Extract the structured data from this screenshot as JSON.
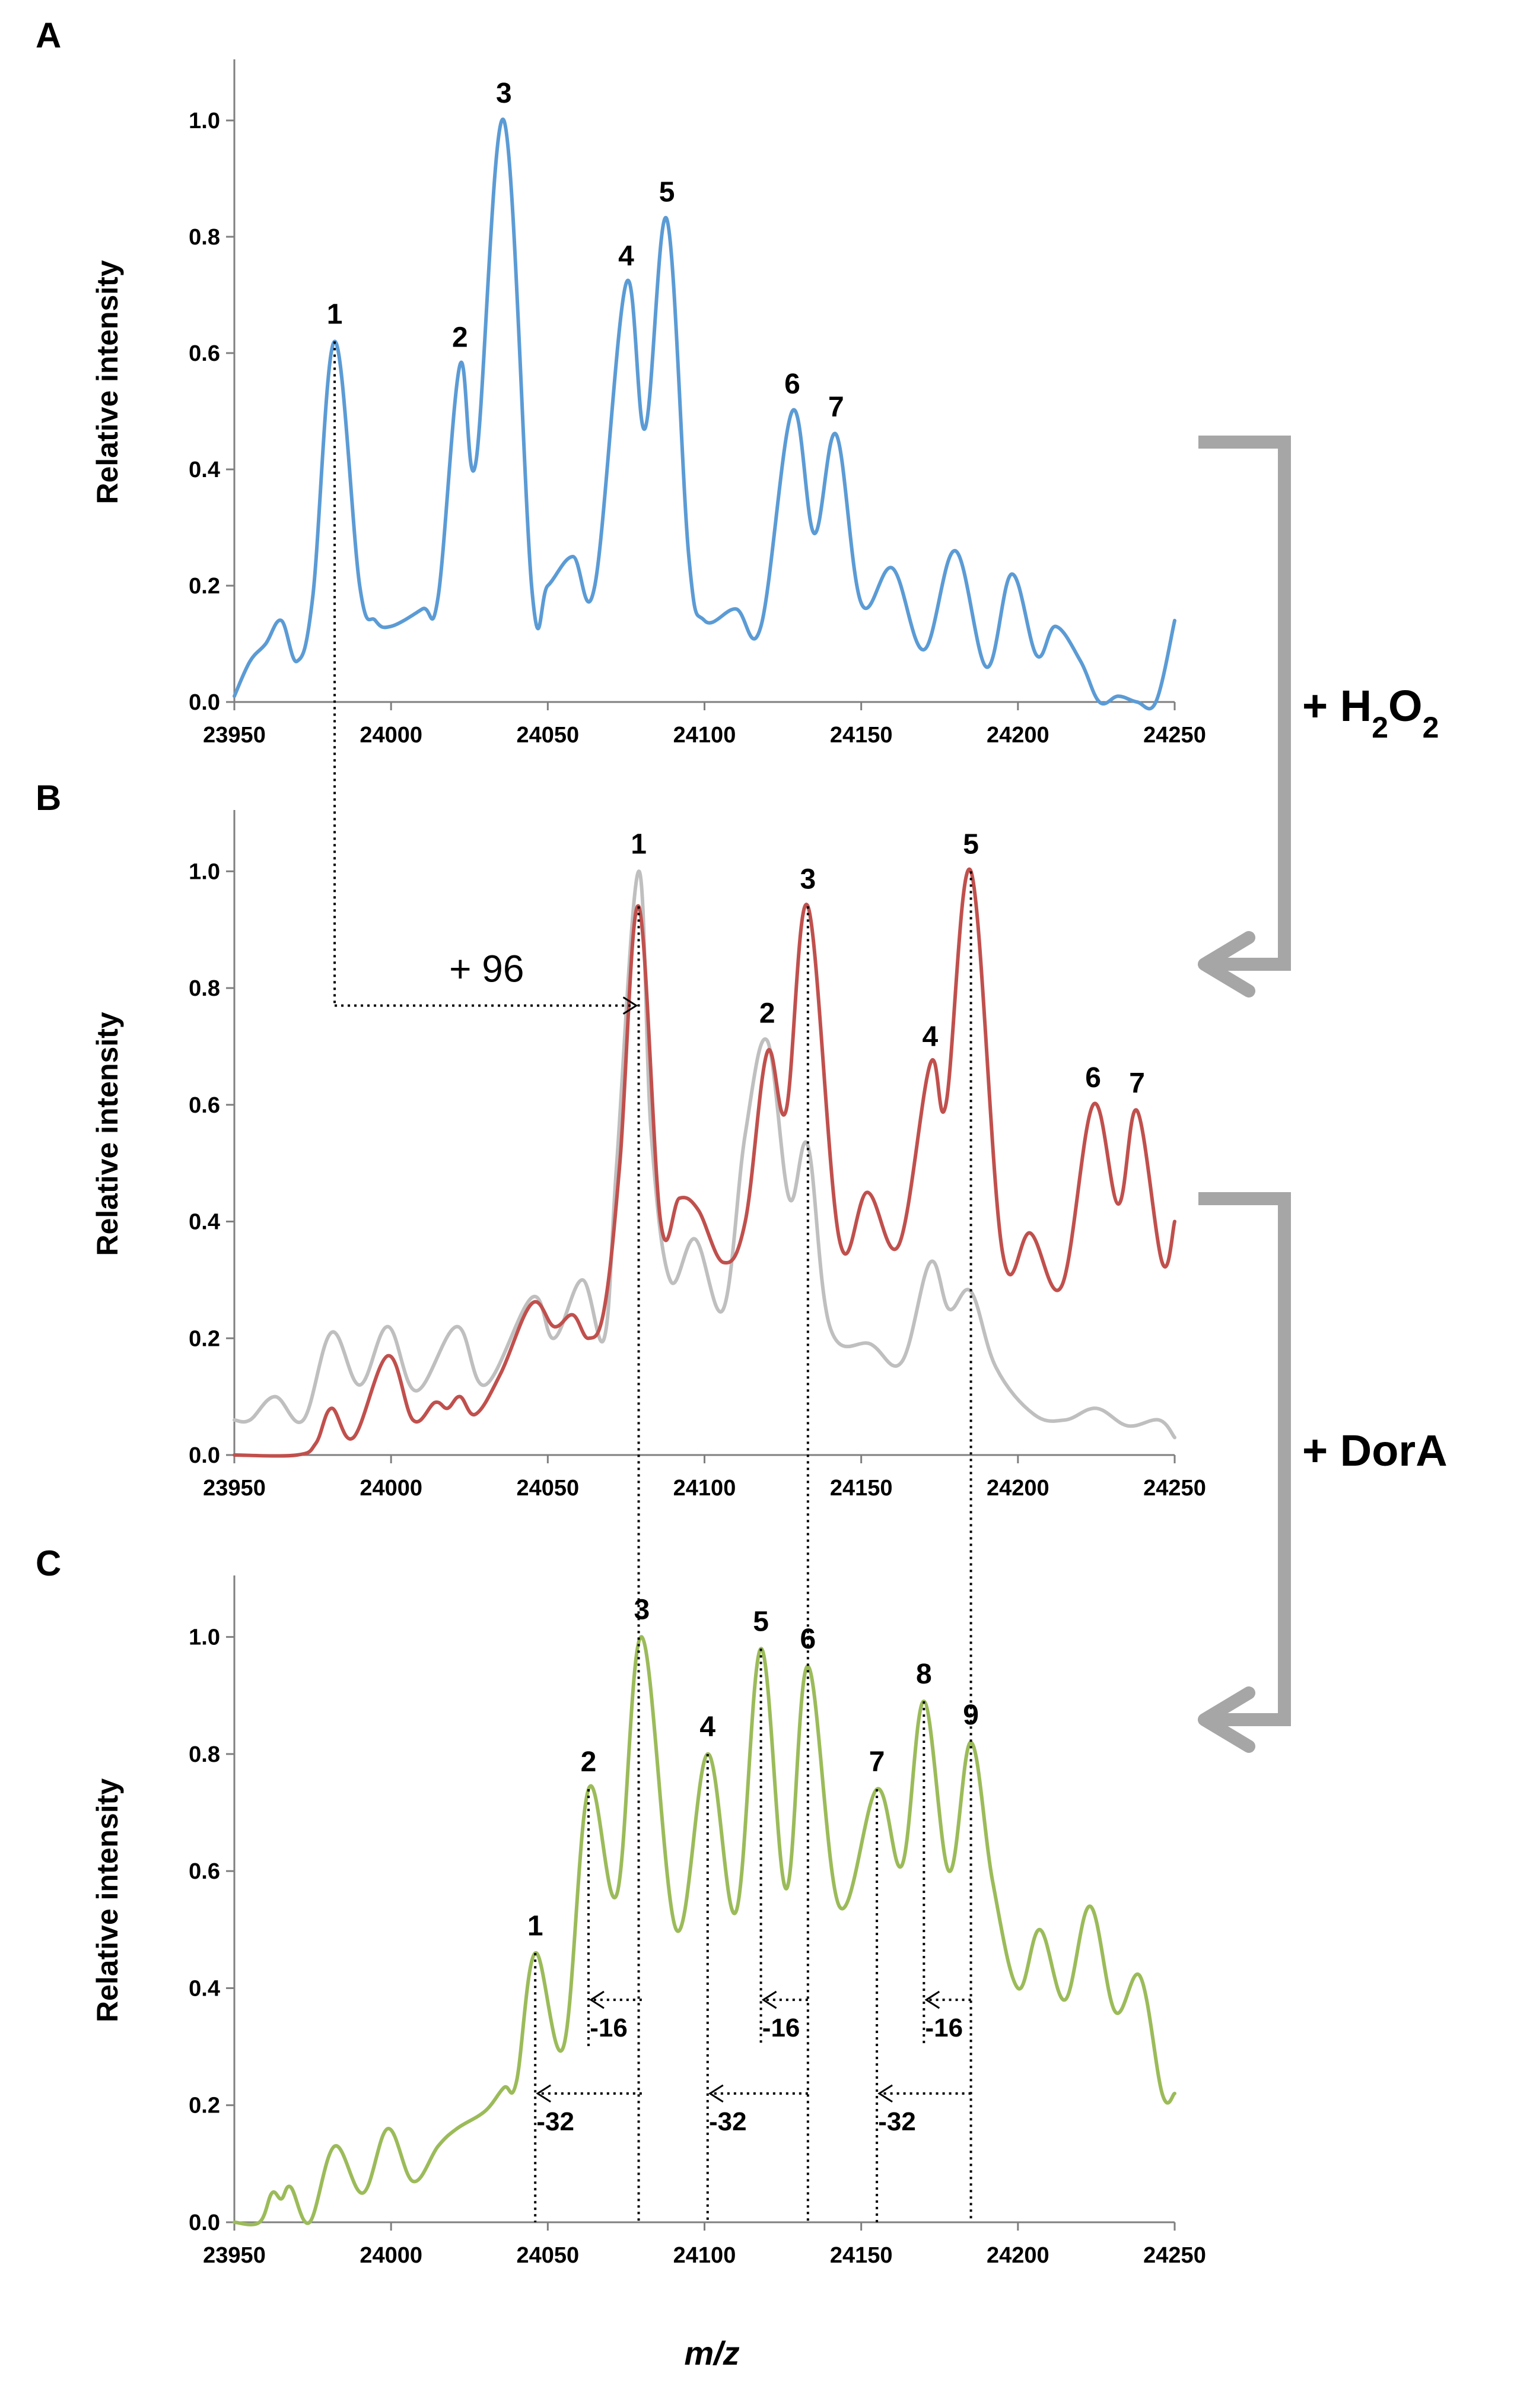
{
  "chart_data": [
    {
      "type": "line",
      "panel": "A",
      "ylabel": "Relative intensity",
      "xlim": [
        23950,
        24250
      ],
      "ylim": [
        0,
        1.1
      ],
      "xticks": [
        23950,
        24000,
        24050,
        24100,
        24150,
        24200,
        24250
      ],
      "yticks": [
        "0.0",
        "0.2",
        "0.4",
        "0.6",
        "0.8",
        "1.0"
      ],
      "series": [
        {
          "name": "A",
          "color": "#5b9bd5",
          "x": [
            23950,
            23955,
            23960,
            23965,
            23970,
            23975,
            23982,
            23990,
            23995,
            24000,
            24010,
            24015,
            24022,
            24027,
            24036,
            24045,
            24050,
            24058,
            24065,
            24075,
            24081,
            24088,
            24095,
            24100,
            24110,
            24118,
            24128,
            24135,
            24142,
            24150,
            24160,
            24170,
            24180,
            24190,
            24198,
            24206,
            24212,
            24220,
            24226,
            24232,
            24238,
            24244,
            24250
          ],
          "y": [
            0.01,
            0.07,
            0.1,
            0.14,
            0.07,
            0.18,
            0.62,
            0.2,
            0.14,
            0.13,
            0.16,
            0.18,
            0.58,
            0.41,
            1.0,
            0.19,
            0.2,
            0.25,
            0.2,
            0.72,
            0.47,
            0.83,
            0.25,
            0.14,
            0.16,
            0.13,
            0.5,
            0.29,
            0.46,
            0.17,
            0.23,
            0.09,
            0.26,
            0.06,
            0.22,
            0.08,
            0.13,
            0.07,
            0.0,
            0.01,
            0.0,
            0.0,
            0.14
          ]
        }
      ],
      "peak_labels": [
        {
          "label": "1",
          "x": 23982,
          "y": 0.62
        },
        {
          "label": "2",
          "x": 24022,
          "y": 0.58
        },
        {
          "label": "3",
          "x": 24036,
          "y": 1.0
        },
        {
          "label": "4",
          "x": 24075,
          "y": 0.72
        },
        {
          "label": "5",
          "x": 24088,
          "y": 0.83
        },
        {
          "label": "6",
          "x": 24128,
          "y": 0.5
        },
        {
          "label": "7",
          "x": 24142,
          "y": 0.46
        }
      ]
    },
    {
      "type": "line",
      "panel": "B",
      "ylabel": "Relative intensity",
      "xlim": [
        23950,
        24250
      ],
      "ylim": [
        0,
        1.1
      ],
      "xticks": [
        23950,
        24000,
        24050,
        24100,
        24150,
        24200,
        24250
      ],
      "yticks": [
        "0.0",
        "0.2",
        "0.4",
        "0.6",
        "0.8",
        "1.0"
      ],
      "series": [
        {
          "name": "gray",
          "color": "#bfbfbf",
          "x": [
            23950,
            23955,
            23963,
            23972,
            23981,
            23990,
            23999,
            24008,
            24021,
            24030,
            24045,
            24052,
            24061,
            24068,
            24072,
            24079,
            24083,
            24089,
            24097,
            24106,
            24113,
            24120,
            24127,
            24133,
            24140,
            24153,
            24163,
            24172,
            24178,
            24185,
            24193,
            24205,
            24215,
            24225,
            24235,
            24245,
            24250
          ],
          "y": [
            0.06,
            0.06,
            0.1,
            0.06,
            0.21,
            0.12,
            0.22,
            0.11,
            0.22,
            0.12,
            0.27,
            0.2,
            0.3,
            0.2,
            0.5,
            1.0,
            0.55,
            0.3,
            0.37,
            0.25,
            0.55,
            0.71,
            0.44,
            0.53,
            0.22,
            0.19,
            0.16,
            0.33,
            0.25,
            0.28,
            0.15,
            0.07,
            0.06,
            0.08,
            0.05,
            0.06,
            0.03
          ]
        },
        {
          "name": "red",
          "color": "#c0504d",
          "x": [
            23950,
            23970,
            23976,
            23981,
            23988,
            23999,
            24007,
            24014,
            24018,
            24022,
            24027,
            24035,
            24045,
            24052,
            24058,
            24063,
            24068,
            24073,
            24079,
            24086,
            24092,
            24098,
            24106,
            24113,
            24120,
            24126,
            24133,
            24143,
            24152,
            24162,
            24172,
            24177,
            24185,
            24195,
            24204,
            24214,
            24224,
            24232,
            24238,
            24246,
            24250
          ],
          "y": [
            0.0,
            0.0,
            0.02,
            0.08,
            0.03,
            0.17,
            0.06,
            0.09,
            0.08,
            0.1,
            0.07,
            0.14,
            0.26,
            0.22,
            0.24,
            0.2,
            0.25,
            0.5,
            0.94,
            0.4,
            0.44,
            0.42,
            0.33,
            0.4,
            0.69,
            0.59,
            0.94,
            0.37,
            0.45,
            0.36,
            0.67,
            0.6,
            1.0,
            0.35,
            0.38,
            0.29,
            0.6,
            0.43,
            0.59,
            0.33,
            0.4
          ]
        }
      ],
      "peak_labels": [
        {
          "label": "1",
          "x": 24079,
          "y": 1.0
        },
        {
          "label": "2",
          "x": 24120,
          "y": 0.71
        },
        {
          "label": "3",
          "x": 24133,
          "y": 0.94
        },
        {
          "label": "4",
          "x": 24172,
          "y": 0.67
        },
        {
          "label": "5",
          "x": 24185,
          "y": 1.0
        },
        {
          "label": "6",
          "x": 24224,
          "y": 0.6
        },
        {
          "label": "7",
          "x": 24238,
          "y": 0.59
        }
      ],
      "annotations": [
        {
          "text": "+ 96",
          "from_x": 23982,
          "to_x": 24079,
          "y": 0.77
        }
      ]
    },
    {
      "type": "line",
      "panel": "C",
      "ylabel": "Relative intensity",
      "xlabel": "m/z",
      "xlim": [
        23950,
        24250
      ],
      "ylim": [
        0,
        1.1
      ],
      "xticks": [
        23950,
        24000,
        24050,
        24100,
        24150,
        24200,
        24250
      ],
      "yticks": [
        "0.0",
        "0.2",
        "0.4",
        "0.6",
        "0.8",
        "1.0"
      ],
      "series": [
        {
          "name": "C",
          "color": "#9bbb59",
          "x": [
            23950,
            23958,
            23962,
            23965,
            23968,
            23974,
            23982,
            23991,
            23999,
            24007,
            24015,
            24021,
            24030,
            24036,
            24040,
            24046,
            24055,
            24063,
            24072,
            24080,
            24091,
            24101,
            24110,
            24118,
            24126,
            24133,
            24143,
            24155,
            24163,
            24170,
            24178,
            24185,
            24192,
            24200,
            24207,
            24215,
            24223,
            24231,
            24239,
            24246,
            24250
          ],
          "y": [
            0.0,
            0.0,
            0.05,
            0.04,
            0.06,
            0.0,
            0.13,
            0.05,
            0.16,
            0.07,
            0.13,
            0.16,
            0.19,
            0.23,
            0.24,
            0.46,
            0.3,
            0.74,
            0.56,
            1.0,
            0.5,
            0.8,
            0.53,
            0.98,
            0.57,
            0.95,
            0.54,
            0.74,
            0.61,
            0.89,
            0.6,
            0.82,
            0.58,
            0.4,
            0.5,
            0.38,
            0.54,
            0.36,
            0.42,
            0.22,
            0.22
          ]
        }
      ],
      "peak_labels": [
        {
          "label": "1",
          "x": 24046,
          "y": 0.46
        },
        {
          "label": "2",
          "x": 24063,
          "y": 0.74
        },
        {
          "label": "3",
          "x": 24080,
          "y": 1.0
        },
        {
          "label": "4",
          "x": 24101,
          "y": 0.8
        },
        {
          "label": "5",
          "x": 24118,
          "y": 0.98
        },
        {
          "label": "6",
          "x": 24133,
          "y": 0.95
        },
        {
          "label": "7",
          "x": 24155,
          "y": 0.74
        },
        {
          "label": "8",
          "x": 24170,
          "y": 0.89
        },
        {
          "label": "9",
          "x": 24185,
          "y": 0.82
        }
      ],
      "annotations": [
        {
          "text": "-16",
          "from_x": 24080,
          "to_x": 24063,
          "y": 0.38
        },
        {
          "text": "-16",
          "from_x": 24133,
          "to_x": 24118,
          "y": 0.38
        },
        {
          "text": "-16",
          "from_x": 24185,
          "to_x": 24170,
          "y": 0.38
        },
        {
          "text": "-32",
          "from_x": 24080,
          "to_x": 24046,
          "y": 0.22
        },
        {
          "text": "-32",
          "from_x": 24133,
          "to_x": 24101,
          "y": 0.22
        },
        {
          "text": "-32",
          "from_x": 24185,
          "to_x": 24155,
          "y": 0.22
        }
      ]
    }
  ],
  "panel_letters": [
    "A",
    "B",
    "C"
  ],
  "side_labels": {
    "h2o2": {
      "prefix": "+ H",
      "sub1": "2",
      "mid": "O",
      "sub2": "2"
    },
    "dora": "+ DorA"
  },
  "shared_xlabel": "m/z",
  "colors": {
    "blue": "#5b9bd5",
    "gray_trace": "#bfbfbf",
    "red": "#c0504d",
    "green": "#9bbb59",
    "bracket": "#a6a6a6"
  }
}
